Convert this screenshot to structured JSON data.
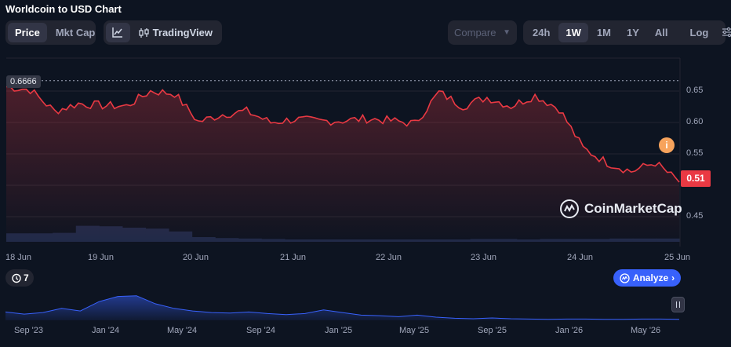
{
  "title": "Worldcoin to USD Chart",
  "toolbar": {
    "price_label": "Price",
    "mktcap_label": "Mkt Cap",
    "tradingview_label": "TradingView",
    "compare_label": "Compare",
    "ranges": [
      "24h",
      "1W",
      "1M",
      "1Y",
      "All"
    ],
    "active_range": "1W",
    "log_label": "Log"
  },
  "events_count": "7",
  "analyze_label": "Analyze",
  "watermark": "CoinMarketCap",
  "high_label": "0.6666",
  "last_label": "0.51",
  "colors": {
    "line": "#ea3943",
    "background": "#0d1421",
    "volume": "#1f2a48",
    "accent": "#3861fb",
    "info": "#f7a35c"
  },
  "chart_data": {
    "type": "line",
    "title": "Worldcoin to USD Chart",
    "x_tick_labels": [
      "18 Jun",
      "19 Jun",
      "20 Jun",
      "21 Jun",
      "22 Jun",
      "23 Jun",
      "24 Jun",
      "25 Jun"
    ],
    "y_tick_labels": [
      "0.65",
      "0.60",
      "0.55",
      "0.45"
    ],
    "ylim": [
      0.4,
      0.68
    ],
    "max_price": 0.6666,
    "last_price": 0.51,
    "series": [
      {
        "x": [
          "18 Jun 00:00",
          "18 Jun 06:00",
          "18 Jun 12:00",
          "18 Jun 18:00",
          "19 Jun 00:00",
          "19 Jun 06:00",
          "19 Jun 12:00",
          "19 Jun 18:00",
          "20 Jun 00:00",
          "20 Jun 06:00",
          "20 Jun 12:00",
          "20 Jun 18:00",
          "21 Jun 00:00",
          "21 Jun 06:00",
          "21 Jun 12:00",
          "21 Jun 18:00",
          "22 Jun 00:00",
          "22 Jun 06:00",
          "22 Jun 12:00",
          "22 Jun 18:00",
          "23 Jun 00:00",
          "23 Jun 06:00",
          "23 Jun 12:00",
          "23 Jun 18:00",
          "24 Jun 00:00",
          "24 Jun 06:00",
          "24 Jun 12:00",
          "24 Jun 18:00",
          "25 Jun 00:00"
        ],
        "values": [
          0.657,
          0.652,
          0.618,
          0.63,
          0.627,
          0.626,
          0.65,
          0.646,
          0.601,
          0.613,
          0.618,
          0.6,
          0.605,
          0.602,
          0.603,
          0.606,
          0.603,
          0.598,
          0.648,
          0.626,
          0.64,
          0.626,
          0.643,
          0.622,
          0.559,
          0.536,
          0.522,
          0.536,
          0.505
        ]
      }
    ],
    "volume": [
      0.18,
      0.18,
      0.19,
      0.34,
      0.33,
      0.3,
      0.28,
      0.22,
      0.1,
      0.08,
      0.07,
      0.06,
      0.05,
      0.05,
      0.05,
      0.05,
      0.05,
      0.05,
      0.05,
      0.05,
      0.06,
      0.06,
      0.05,
      0.06,
      0.06,
      0.06,
      0.07,
      0.07,
      0.07
    ],
    "overview": {
      "x_tick_labels": [
        "Sep '23",
        "Jan '24",
        "May '24",
        "Sep '24",
        "Jan '25",
        "May '25",
        "Sep '25",
        "Jan '26",
        "May '26"
      ],
      "values": [
        0.32,
        0.24,
        0.3,
        0.46,
        0.36,
        0.72,
        0.92,
        0.95,
        0.64,
        0.46,
        0.36,
        0.3,
        0.28,
        0.32,
        0.26,
        0.22,
        0.26,
        0.4,
        0.3,
        0.2,
        0.18,
        0.14,
        0.2,
        0.12,
        0.08,
        0.06,
        0.09,
        0.06,
        0.05,
        0.04,
        0.05,
        0.05,
        0.04,
        0.04,
        0.05,
        0.05,
        0.04
      ]
    }
  }
}
